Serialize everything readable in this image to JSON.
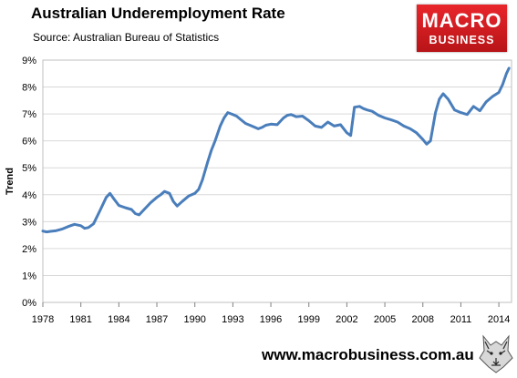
{
  "header": {
    "title": "Australian Underemployment Rate",
    "subtitle": "Source: Australian Bureau of Statistics"
  },
  "logo": {
    "line1": "MACRO",
    "line2": "BUSINESS",
    "color": "#d81e23"
  },
  "footer": {
    "url": "www.macrobusiness.com.au"
  },
  "chart_data": {
    "type": "line",
    "title": "Australian Underemployment Rate",
    "subtitle": "Source: Australian Bureau of Statistics",
    "ylabel": "Trend",
    "xlabel": "",
    "xlim": [
      1978,
      2015
    ],
    "ylim": [
      0,
      9
    ],
    "yticks": [
      "0%",
      "1%",
      "2%",
      "3%",
      "4%",
      "5%",
      "6%",
      "7%",
      "8%",
      "9%"
    ],
    "xticks": [
      "1978",
      "1981",
      "1984",
      "1987",
      "1990",
      "1993",
      "1996",
      "1999",
      "2002",
      "2005",
      "2008",
      "2011",
      "2014"
    ],
    "grid": true,
    "legend": "none",
    "line_color": "#4a7ebb",
    "series": [
      {
        "x": [
          1978.0,
          1978.3,
          1978.6,
          1979.0,
          1979.5,
          1980.0,
          1980.5,
          1981.0,
          1981.3,
          1981.6,
          1982.0,
          1982.5,
          1983.0,
          1983.3,
          1983.6,
          1984.0,
          1984.5,
          1985.0,
          1985.3,
          1985.6,
          1986.0,
          1986.5,
          1987.0,
          1987.3,
          1987.6,
          1988.0,
          1988.3,
          1988.6,
          1989.0,
          1989.5,
          1990.0,
          1990.3,
          1990.6,
          1991.0,
          1991.3,
          1991.6,
          1992.0,
          1992.3,
          1992.6,
          1993.0,
          1993.3,
          1993.6,
          1994.0,
          1994.5,
          1995.0,
          1995.3,
          1995.6,
          1996.0,
          1996.5,
          1997.0,
          1997.3,
          1997.6,
          1998.0,
          1998.5,
          1999.0,
          1999.5,
          2000.0,
          2000.5,
          2001.0,
          2001.5,
          2002.0,
          2002.3,
          2002.6,
          2003.0,
          2003.3,
          2003.6,
          2004.0,
          2004.5,
          2005.0,
          2005.5,
          2006.0,
          2006.5,
          2007.0,
          2007.5,
          2008.0,
          2008.3,
          2008.6,
          2009.0,
          2009.3,
          2009.6,
          2010.0,
          2010.5,
          2011.0,
          2011.5,
          2012.0,
          2012.5,
          2013.0,
          2013.5,
          2014.0,
          2014.3,
          2014.6,
          2014.8
        ],
        "values": [
          2.65,
          2.62,
          2.64,
          2.66,
          2.72,
          2.82,
          2.9,
          2.85,
          2.75,
          2.78,
          2.92,
          3.4,
          3.9,
          4.05,
          3.85,
          3.6,
          3.52,
          3.45,
          3.3,
          3.25,
          3.45,
          3.7,
          3.9,
          4.0,
          4.12,
          4.05,
          3.75,
          3.58,
          3.75,
          3.95,
          4.05,
          4.2,
          4.55,
          5.2,
          5.65,
          6.0,
          6.55,
          6.85,
          7.05,
          6.98,
          6.92,
          6.8,
          6.65,
          6.55,
          6.45,
          6.5,
          6.58,
          6.62,
          6.6,
          6.85,
          6.95,
          6.98,
          6.9,
          6.92,
          6.75,
          6.55,
          6.5,
          6.7,
          6.55,
          6.6,
          6.3,
          6.2,
          7.25,
          7.28,
          7.2,
          7.15,
          7.1,
          6.95,
          6.85,
          6.78,
          6.7,
          6.55,
          6.45,
          6.3,
          6.05,
          5.88,
          6.0,
          7.05,
          7.55,
          7.75,
          7.55,
          7.15,
          7.05,
          6.98,
          7.28,
          7.12,
          7.45,
          7.65,
          7.8,
          8.1,
          8.5,
          8.7
        ]
      }
    ]
  }
}
